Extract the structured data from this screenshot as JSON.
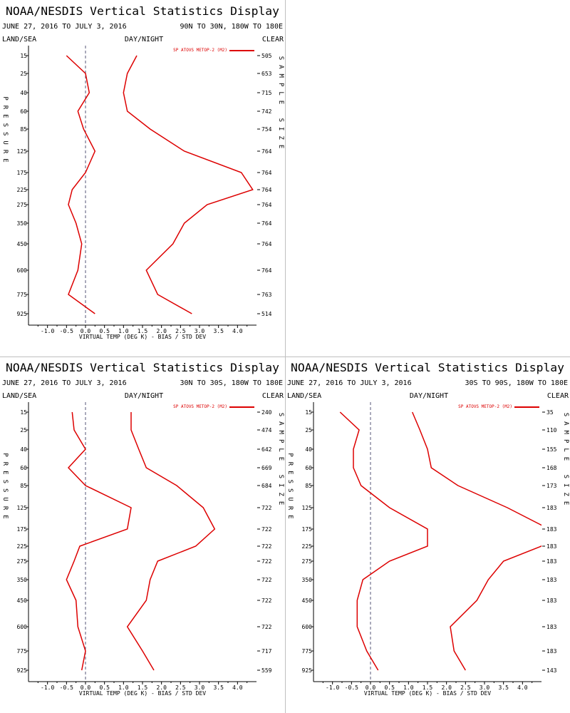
{
  "colors": {
    "series": "#dd0000",
    "axis": "#000000",
    "zero_line": "#555577",
    "divider": "#bfbfbf"
  },
  "panels": [
    {
      "title": "NOAA/NESDIS Vertical Statistics Display",
      "date_range": "JUNE 27, 2016 TO JULY 3, 2016",
      "region": "90N TO 30N, 180W TO 180E",
      "corner_left": "LAND/SEA",
      "corner_center": "DAY/NIGHT",
      "corner_right": "CLEAR",
      "left_axis_label": "PRESSURE",
      "right_axis_label": "SAMPLE SIZE",
      "chart_data": {
        "type": "line",
        "xlabel": "VIRTUAL TEMP (DEG K) - BIAS / STD DEV",
        "ylabel": "PRESSURE",
        "xlim": [
          -1.5,
          4.5
        ],
        "x_ticks": [
          "-1.0",
          "-0.5",
          "0.0",
          "0.5",
          "1.0",
          "1.5",
          "2.0",
          "2.5",
          "3.0",
          "3.5",
          "4.0"
        ],
        "pressure_levels": [
          "15",
          "25",
          "40",
          "60",
          "85",
          "125",
          "175",
          "225",
          "275",
          "350",
          "450",
          "600",
          "775",
          "925"
        ],
        "sample_size": [
          "505",
          "653",
          "715",
          "742",
          "754",
          "764",
          "764",
          "764",
          "764",
          "764",
          "764",
          "764",
          "763",
          "514"
        ],
        "legend": "SP ATOVS METOP-2 (M2)",
        "series": [
          {
            "role": "bias",
            "values": [
              -0.5,
              0.0,
              0.1,
              -0.2,
              -0.05,
              0.25,
              0.0,
              -0.35,
              -0.45,
              -0.25,
              -0.1,
              -0.2,
              -0.45,
              0.25
            ]
          },
          {
            "role": "std_dev",
            "values": [
              1.35,
              1.1,
              1.0,
              1.1,
              1.7,
              2.6,
              4.1,
              4.4,
              3.2,
              2.6,
              2.3,
              1.6,
              1.9,
              2.8
            ]
          }
        ]
      }
    },
    {
      "title": "NOAA/NESDIS Vertical Statistics Display",
      "date_range": "JUNE 27, 2016 TO JULY 3, 2016",
      "region": "30N TO 30S, 180W TO 180E",
      "corner_left": "LAND/SEA",
      "corner_center": "DAY/NIGHT",
      "corner_right": "CLEAR",
      "left_axis_label": "PRESSURE",
      "right_axis_label": "SAMPLE SIZE",
      "chart_data": {
        "type": "line",
        "xlabel": "VIRTUAL TEMP (DEG K) - BIAS / STD DEV",
        "ylabel": "PRESSURE",
        "xlim": [
          -1.5,
          4.5
        ],
        "x_ticks": [
          "-1.0",
          "-0.5",
          "0.0",
          "0.5",
          "1.0",
          "1.5",
          "2.0",
          "2.5",
          "3.0",
          "3.5",
          "4.0"
        ],
        "pressure_levels": [
          "15",
          "25",
          "40",
          "60",
          "85",
          "125",
          "175",
          "225",
          "275",
          "350",
          "450",
          "600",
          "775",
          "925"
        ],
        "sample_size": [
          "240",
          "474",
          "642",
          "669",
          "684",
          "722",
          "722",
          "722",
          "722",
          "722",
          "722",
          "722",
          "717",
          "559"
        ],
        "legend": "SP ATOVS METOP-2 (M2)",
        "series": [
          {
            "role": "bias",
            "values": [
              -0.35,
              -0.3,
              0.0,
              -0.45,
              0.0,
              1.2,
              1.1,
              -0.15,
              -0.3,
              -0.5,
              -0.25,
              -0.2,
              0.0,
              -0.1
            ]
          },
          {
            "role": "std_dev",
            "values": [
              1.2,
              1.2,
              1.4,
              1.6,
              2.4,
              3.1,
              3.4,
              2.9,
              1.9,
              1.7,
              1.6,
              1.1,
              1.5,
              1.8
            ]
          }
        ]
      }
    },
    {
      "title": "NOAA/NESDIS Vertical Statistics Display",
      "date_range": "JUNE 27, 2016 TO JULY 3, 2016",
      "region": "30S TO 90S, 180W TO 180E",
      "corner_left": "LAND/SEA",
      "corner_center": "DAY/NIGHT",
      "corner_right": "CLEAR",
      "left_axis_label": "PRESSURE",
      "right_axis_label": "SAMPLE SIZE",
      "chart_data": {
        "type": "line",
        "xlabel": "VIRTUAL TEMP (DEG K) - BIAS / STD DEV",
        "ylabel": "PRESSURE",
        "xlim": [
          -1.5,
          4.5
        ],
        "x_ticks": [
          "-1.0",
          "-0.5",
          "0.0",
          "0.5",
          "1.0",
          "1.5",
          "2.0",
          "2.5",
          "3.0",
          "3.5",
          "4.0"
        ],
        "pressure_levels": [
          "15",
          "25",
          "40",
          "60",
          "85",
          "125",
          "175",
          "225",
          "275",
          "350",
          "450",
          "600",
          "775",
          "925"
        ],
        "sample_size": [
          "35",
          "110",
          "155",
          "168",
          "173",
          "183",
          "183",
          "183",
          "183",
          "183",
          "183",
          "183",
          "183",
          "143"
        ],
        "legend": "SP ATOVS METOP-2 (M2)",
        "series": [
          {
            "role": "bias",
            "values": [
              -0.8,
              -0.3,
              -0.45,
              -0.45,
              -0.25,
              0.5,
              1.5,
              1.5,
              0.5,
              -0.2,
              -0.35,
              -0.35,
              -0.1,
              0.2
            ]
          },
          {
            "role": "std_dev",
            "values": [
              1.1,
              1.3,
              1.5,
              1.6,
              2.3,
              3.6,
              4.7,
              4.5,
              3.5,
              3.1,
              2.8,
              2.1,
              2.2,
              2.5
            ]
          }
        ]
      }
    }
  ]
}
